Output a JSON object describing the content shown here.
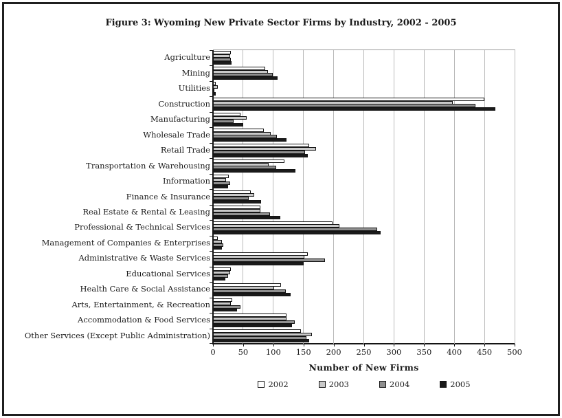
{
  "figure": {
    "title": "Figure 3: Wyoming New Private Sector Firms by Industry, 2002 - 2005"
  },
  "chart_data": {
    "type": "bar",
    "orientation": "horizontal",
    "title": "Figure 3: Wyoming New Private Sector Firms by Industry, 2002 - 2005",
    "xlabel": "Number of New Firms",
    "ylabel": "",
    "xlim": [
      0,
      500
    ],
    "xticks": [
      0,
      50,
      100,
      150,
      200,
      250,
      300,
      350,
      400,
      450,
      500
    ],
    "grid": true,
    "legend_position": "bottom",
    "categories": [
      "Agriculture",
      "Mining",
      "Utilities",
      "Construction",
      "Manufacturing",
      "Wholesale Trade",
      "Retail Trade",
      "Transportation & Warehousing",
      "Information",
      "Finance & Insurance",
      "Real Estate & Rental & Leasing",
      "Professional & Technical Services",
      "Management of Companies & Enterprises",
      "Administrative & Waste Services",
      "Educational Services",
      "Health Care & Social Assistance",
      "Arts, Entertainment, & Recreation",
      "Accommodation & Food Services",
      "Other Services (Except Public Administration)"
    ],
    "series": [
      {
        "name": "2002",
        "color": "#ffffff",
        "values": [
          30,
          87,
          5,
          450,
          45,
          84,
          160,
          118,
          26,
          63,
          79,
          198,
          8,
          157,
          30,
          113,
          32,
          122,
          146
        ]
      },
      {
        "name": "2003",
        "color": "#c9c9c9",
        "values": [
          29,
          91,
          8,
          397,
          56,
          96,
          171,
          92,
          22,
          68,
          79,
          210,
          15,
          152,
          28,
          101,
          30,
          122,
          164
        ]
      },
      {
        "name": "2004",
        "color": "#8f8f8f",
        "values": [
          30,
          99,
          2,
          435,
          34,
          106,
          153,
          105,
          29,
          59,
          95,
          272,
          17,
          186,
          25,
          121,
          46,
          135,
          155
        ]
      },
      {
        "name": "2005",
        "color": "#1a1a1a",
        "values": [
          31,
          107,
          4,
          468,
          50,
          122,
          157,
          137,
          25,
          80,
          112,
          278,
          15,
          150,
          21,
          129,
          40,
          131,
          159
        ]
      }
    ]
  }
}
